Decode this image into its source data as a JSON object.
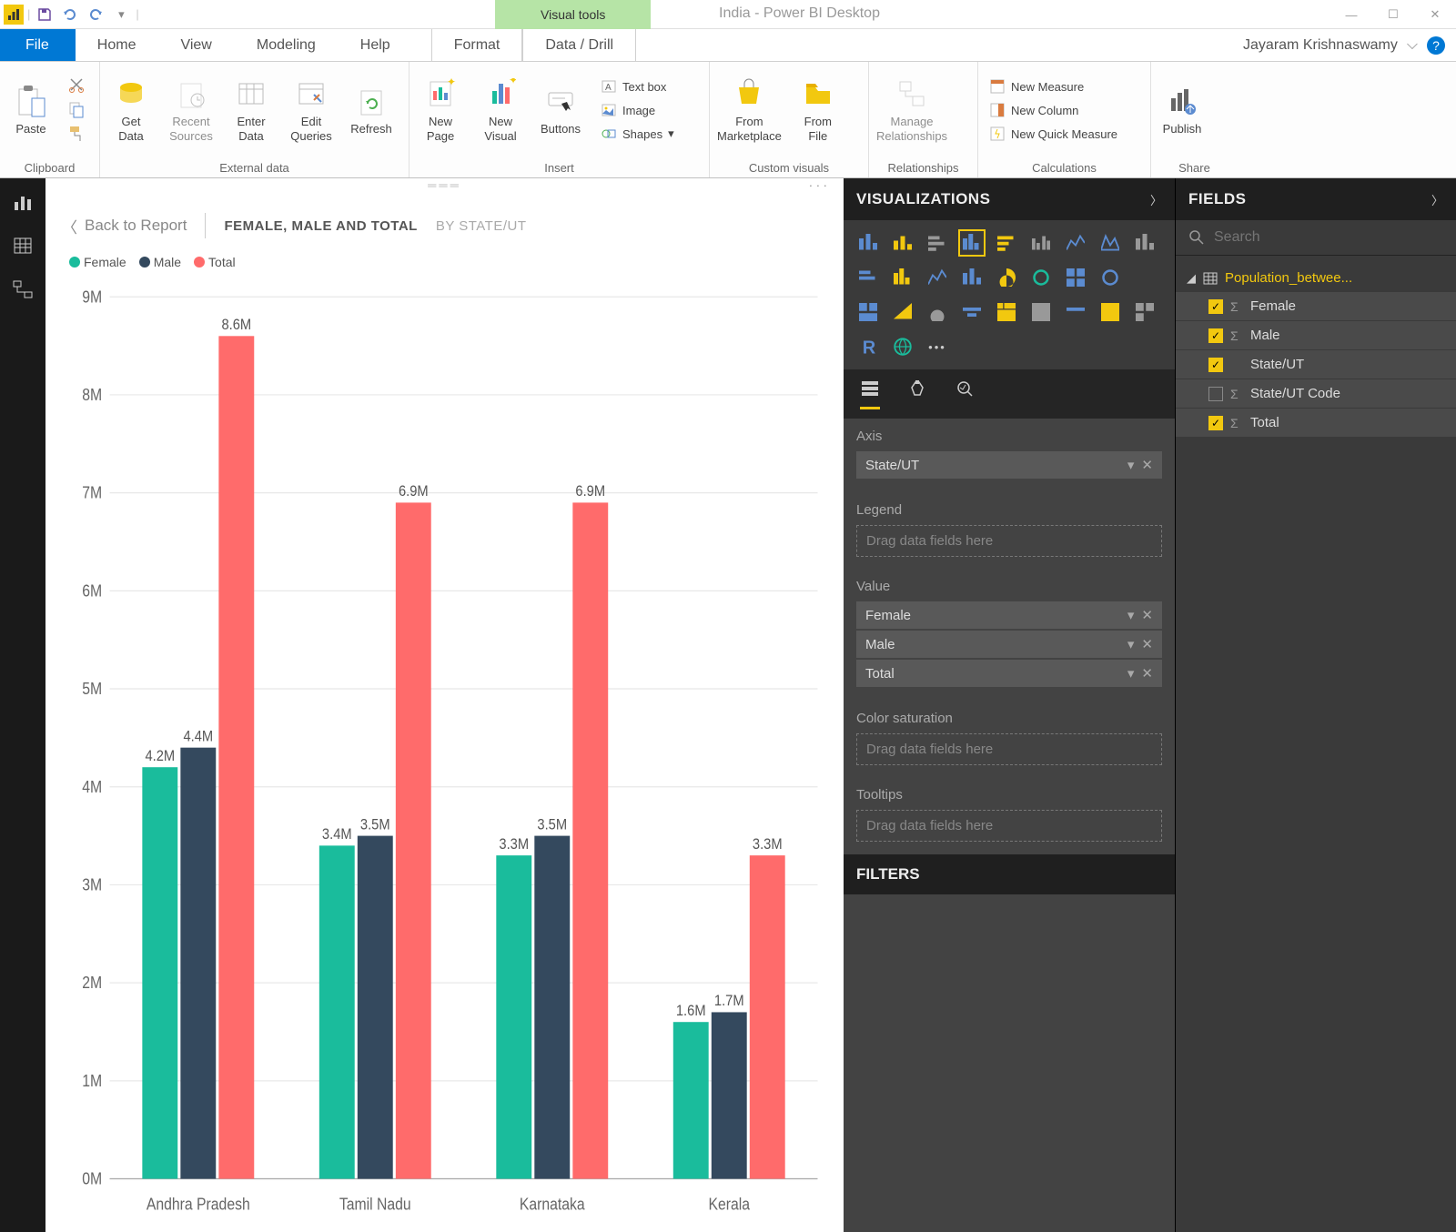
{
  "titlebar": {
    "visual_tools": "Visual tools",
    "title": "India - Power BI Desktop"
  },
  "menu": {
    "file": "File",
    "home": "Home",
    "view": "View",
    "modeling": "Modeling",
    "help": "Help",
    "format": "Format",
    "data_drill": "Data / Drill",
    "user": "Jayaram Krishnaswamy"
  },
  "ribbon": {
    "clipboard": {
      "label": "Clipboard",
      "paste": "Paste"
    },
    "external": {
      "label": "External data",
      "get": "Get\nData",
      "recent": "Recent\nSources",
      "enter": "Enter\nData",
      "edit": "Edit\nQueries",
      "refresh": "Refresh"
    },
    "insert": {
      "label": "Insert",
      "new_page": "New\nPage",
      "new_visual": "New\nVisual",
      "buttons": "Buttons",
      "textbox": "Text box",
      "image": "Image",
      "shapes": "Shapes"
    },
    "custom": {
      "label": "Custom visuals",
      "marketplace": "From\nMarketplace",
      "file": "From\nFile"
    },
    "relationships": {
      "label": "Relationships",
      "manage": "Manage\nRelationships"
    },
    "calculations": {
      "label": "Calculations",
      "measure": "New Measure",
      "column": "New Column",
      "quick": "New Quick Measure"
    },
    "share": {
      "label": "Share",
      "publish": "Publish"
    }
  },
  "breadcrumb": {
    "back": "Back to Report",
    "title": "FEMALE, MALE AND TOTAL",
    "sub": "BY STATE/UT"
  },
  "legend": {
    "female": "Female",
    "male": "Male",
    "total": "Total"
  },
  "chart": {
    "type": "clustered-bar",
    "y_label_suffix": "M",
    "ylim": [
      0,
      9
    ],
    "ytick_step": 1,
    "categories": [
      "Andhra Pradesh",
      "Tamil Nadu",
      "Karnataka",
      "Kerala"
    ],
    "series": [
      {
        "name": "Female",
        "color": "#1abc9c",
        "values": [
          4.2,
          3.4,
          3.3,
          1.6
        ],
        "labels": [
          "4.2M",
          "3.4M",
          "3.3M",
          "1.6M"
        ]
      },
      {
        "name": "Male",
        "color": "#34495e",
        "values": [
          4.4,
          3.5,
          3.5,
          1.7
        ],
        "labels": [
          "4.4M",
          "3.5M",
          "3.5M",
          "1.7M"
        ]
      },
      {
        "name": "Total",
        "color": "#ff6b6b",
        "values": [
          8.6,
          6.9,
          6.9,
          3.3
        ],
        "labels": [
          "8.6M",
          "6.9M",
          "6.9M",
          "3.3M"
        ]
      }
    ],
    "background_color": "#ffffff",
    "grid_color": "#e8e8e8",
    "axis_text_color": "#666666"
  },
  "viz": {
    "header": "VISUALIZATIONS",
    "wells": {
      "axis_label": "Axis",
      "axis_item": "State/UT",
      "legend_label": "Legend",
      "value_label": "Value",
      "value_items": [
        "Female",
        "Male",
        "Total"
      ],
      "color_sat_label": "Color saturation",
      "tooltips_label": "Tooltips",
      "drop_hint": "Drag data fields here"
    },
    "filters": "FILTERS"
  },
  "fields": {
    "header": "FIELDS",
    "search_ph": "Search",
    "table": "Population_betwee...",
    "items": [
      {
        "name": "Female",
        "checked": true,
        "sigma": true
      },
      {
        "name": "Male",
        "checked": true,
        "sigma": true
      },
      {
        "name": "State/UT",
        "checked": true,
        "sigma": false
      },
      {
        "name": "State/UT Code",
        "checked": false,
        "sigma": true
      },
      {
        "name": "Total",
        "checked": true,
        "sigma": true
      }
    ]
  }
}
